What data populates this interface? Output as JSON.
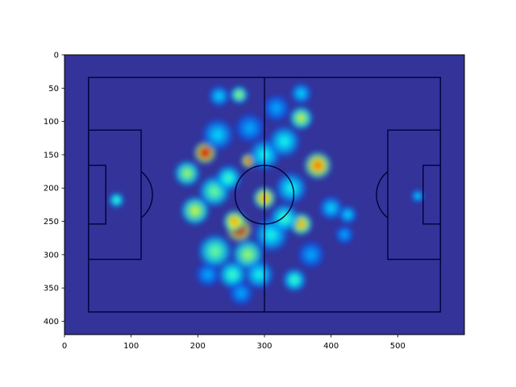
{
  "chart_data": {
    "type": "heatmap",
    "title": "",
    "xlabel": "",
    "ylabel": "",
    "xlim": [
      0,
      600
    ],
    "ylim": [
      420,
      0
    ],
    "y_inverted": true,
    "x_ticks": [
      0,
      100,
      200,
      300,
      400,
      500
    ],
    "x_tick_labels": [
      "0",
      "100",
      "200",
      "300",
      "400",
      "500"
    ],
    "y_ticks": [
      0,
      50,
      100,
      150,
      200,
      250,
      300,
      350,
      400
    ],
    "y_tick_labels": [
      "0",
      "50",
      "100",
      "150",
      "200",
      "250",
      "300",
      "350",
      "400"
    ],
    "grid": false,
    "colormap": "jet",
    "colors": {
      "pitch_background": "#333399",
      "pitch_lines": "#00003a",
      "axis": "#000000"
    },
    "pitch": {
      "outer": {
        "x1": 36,
        "y1": 34,
        "x2": 564,
        "y2": 386
      },
      "halfway_x": 300,
      "centre": [
        300,
        210
      ],
      "centre_circle_r": 44,
      "left_penalty_area": {
        "x1": 36,
        "y1": 113,
        "x2": 115,
        "y2": 307
      },
      "right_penalty_area": {
        "x1": 485,
        "y1": 113,
        "x2": 564,
        "y2": 307
      },
      "left_goal_area": {
        "x1": 36,
        "y1": 166,
        "x2": 62,
        "y2": 254
      },
      "right_goal_area": {
        "x1": 538,
        "y1": 166,
        "x2": 564,
        "y2": 254
      },
      "left_penalty_spot": [
        88,
        210
      ],
      "right_penalty_spot": [
        512,
        210
      ],
      "penalty_arc_r": 44
    },
    "hotspots": [
      {
        "x": 262,
        "y": 262,
        "intensity": 1.0,
        "spread": 10
      },
      {
        "x": 255,
        "y": 250,
        "intensity": 0.75,
        "spread": 9
      },
      {
        "x": 211,
        "y": 147,
        "intensity": 0.95,
        "spread": 9
      },
      {
        "x": 276,
        "y": 159,
        "intensity": 0.85,
        "spread": 6
      },
      {
        "x": 300,
        "y": 215,
        "intensity": 0.75,
        "spread": 9
      },
      {
        "x": 380,
        "y": 166,
        "intensity": 0.8,
        "spread": 11
      },
      {
        "x": 355,
        "y": 254,
        "intensity": 0.72,
        "spread": 9
      },
      {
        "x": 196,
        "y": 234,
        "intensity": 0.6,
        "spread": 11
      },
      {
        "x": 184,
        "y": 178,
        "intensity": 0.55,
        "spread": 10
      },
      {
        "x": 225,
        "y": 205,
        "intensity": 0.5,
        "spread": 12
      },
      {
        "x": 246,
        "y": 185,
        "intensity": 0.45,
        "spread": 10
      },
      {
        "x": 226,
        "y": 295,
        "intensity": 0.5,
        "spread": 13
      },
      {
        "x": 275,
        "y": 300,
        "intensity": 0.55,
        "spread": 12
      },
      {
        "x": 252,
        "y": 330,
        "intensity": 0.45,
        "spread": 11
      },
      {
        "x": 292,
        "y": 330,
        "intensity": 0.4,
        "spread": 11
      },
      {
        "x": 310,
        "y": 270,
        "intensity": 0.4,
        "spread": 13
      },
      {
        "x": 330,
        "y": 245,
        "intensity": 0.45,
        "spread": 11
      },
      {
        "x": 340,
        "y": 200,
        "intensity": 0.4,
        "spread": 12
      },
      {
        "x": 300,
        "y": 150,
        "intensity": 0.4,
        "spread": 12
      },
      {
        "x": 330,
        "y": 130,
        "intensity": 0.4,
        "spread": 12
      },
      {
        "x": 355,
        "y": 95,
        "intensity": 0.6,
        "spread": 9
      },
      {
        "x": 355,
        "y": 58,
        "intensity": 0.35,
        "spread": 8
      },
      {
        "x": 318,
        "y": 80,
        "intensity": 0.3,
        "spread": 10
      },
      {
        "x": 262,
        "y": 60,
        "intensity": 0.55,
        "spread": 7
      },
      {
        "x": 232,
        "y": 62,
        "intensity": 0.35,
        "spread": 8
      },
      {
        "x": 230,
        "y": 120,
        "intensity": 0.35,
        "spread": 12
      },
      {
        "x": 278,
        "y": 110,
        "intensity": 0.3,
        "spread": 11
      },
      {
        "x": 345,
        "y": 338,
        "intensity": 0.45,
        "spread": 9
      },
      {
        "x": 370,
        "y": 300,
        "intensity": 0.3,
        "spread": 10
      },
      {
        "x": 400,
        "y": 230,
        "intensity": 0.35,
        "spread": 9
      },
      {
        "x": 425,
        "y": 240,
        "intensity": 0.35,
        "spread": 7
      },
      {
        "x": 420,
        "y": 270,
        "intensity": 0.3,
        "spread": 7
      },
      {
        "x": 265,
        "y": 358,
        "intensity": 0.3,
        "spread": 9
      },
      {
        "x": 215,
        "y": 330,
        "intensity": 0.3,
        "spread": 9
      },
      {
        "x": 78,
        "y": 218,
        "intensity": 0.45,
        "spread": 6
      },
      {
        "x": 530,
        "y": 212,
        "intensity": 0.35,
        "spread": 5
      }
    ]
  }
}
